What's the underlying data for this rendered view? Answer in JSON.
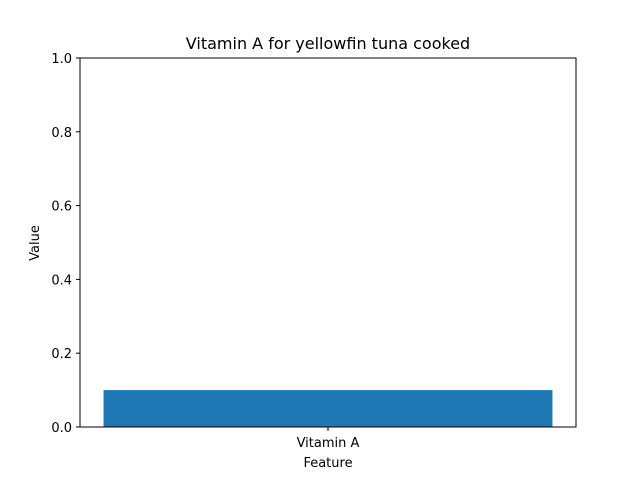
{
  "chart_data": {
    "type": "bar",
    "title": "Vitamin A for yellowfin tuna cooked",
    "xlabel": "Feature",
    "ylabel": "Value",
    "categories": [
      "Vitamin A"
    ],
    "values": [
      0.1
    ],
    "ylim": [
      0,
      1.0
    ],
    "yticks": [
      "0.0",
      "0.2",
      "0.4",
      "0.6",
      "0.8",
      "1.0"
    ],
    "grid": false,
    "legend": "none",
    "bar_color": "#1f77b4"
  }
}
